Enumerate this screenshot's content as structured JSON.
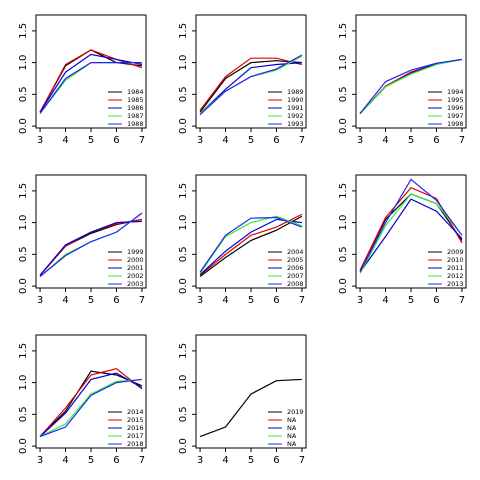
{
  "chart_data": [
    {
      "type": "line",
      "x": [
        3,
        4,
        5,
        6,
        7
      ],
      "xlim": [
        2.84,
        7.16
      ],
      "xticks": [
        3,
        4,
        5,
        6,
        7
      ],
      "ylim": [
        -0.03,
        1.75
      ],
      "yticks": [
        {
          "value": 0,
          "label": "0.0"
        },
        {
          "value": 0.5,
          "label": "0.5"
        },
        {
          "value": 1,
          "label": "1.0"
        },
        {
          "value": 1.5,
          "label": "1.5"
        }
      ],
      "series": [
        {
          "name": "1984",
          "color": "#000000",
          "values": [
            0.22,
            0.95,
            1.2,
            1.0,
            0.95
          ]
        },
        {
          "name": "1985",
          "color": "#e00000",
          "values": [
            0.22,
            0.97,
            1.2,
            1.05,
            0.92
          ]
        },
        {
          "name": "1986",
          "color": "#0000cd",
          "values": [
            0.22,
            0.85,
            1.13,
            1.05,
            0.97
          ]
        },
        {
          "name": "1987",
          "color": "#33ee33",
          "values": [
            0.2,
            0.72,
            1.0,
            1.0,
            1.0
          ]
        },
        {
          "name": "1988",
          "color": "#2222ff",
          "values": [
            0.2,
            0.75,
            1.0,
            1.0,
            1.0
          ]
        }
      ]
    },
    {
      "type": "line",
      "x": [
        3,
        4,
        5,
        6,
        7
      ],
      "xlim": [
        2.84,
        7.16
      ],
      "xticks": [
        3,
        4,
        5,
        6,
        7
      ],
      "ylim": [
        -0.03,
        1.75
      ],
      "yticks": [
        {
          "value": 0,
          "label": "0.0"
        },
        {
          "value": 0.5,
          "label": "0.5"
        },
        {
          "value": 1,
          "label": "1.0"
        },
        {
          "value": 1.5,
          "label": "1.5"
        }
      ],
      "series": [
        {
          "name": "1989",
          "color": "#000000",
          "values": [
            0.22,
            0.75,
            1.0,
            1.03,
            1.0
          ]
        },
        {
          "name": "1990",
          "color": "#e00000",
          "values": [
            0.25,
            0.78,
            1.07,
            1.07,
            0.97
          ]
        },
        {
          "name": "1991",
          "color": "#0000cd",
          "values": [
            0.2,
            0.58,
            0.92,
            0.97,
            1.0
          ]
        },
        {
          "name": "1992",
          "color": "#33ee33",
          "values": [
            0.2,
            0.55,
            0.78,
            0.88,
            1.1
          ]
        },
        {
          "name": "1993",
          "color": "#2222ff",
          "values": [
            0.18,
            0.55,
            0.78,
            0.9,
            1.12
          ]
        }
      ]
    },
    {
      "type": "line",
      "x": [
        3,
        4,
        5,
        6,
        7
      ],
      "xlim": [
        2.84,
        7.16
      ],
      "xticks": [
        3,
        4,
        5,
        6,
        7
      ],
      "ylim": [
        -0.03,
        1.75
      ],
      "yticks": [
        {
          "value": 0,
          "label": "0.0"
        },
        {
          "value": 0.5,
          "label": "0.5"
        },
        {
          "value": 1,
          "label": "1.0"
        },
        {
          "value": 1.5,
          "label": "1.5"
        }
      ],
      "series": [
        {
          "name": "1994",
          "color": "#000000",
          "values": [
            0.2,
            0.62,
            0.85,
            0.98,
            1.05
          ]
        },
        {
          "name": "1995",
          "color": "#e00000",
          "values": [
            0.2,
            0.63,
            0.85,
            0.98,
            1.05
          ]
        },
        {
          "name": "1996",
          "color": "#0000cd",
          "values": [
            0.2,
            0.62,
            0.83,
            0.98,
            1.05
          ]
        },
        {
          "name": "1997",
          "color": "#33ee33",
          "values": [
            0.2,
            0.62,
            0.82,
            0.97,
            1.05
          ]
        },
        {
          "name": "1998",
          "color": "#2222ff",
          "values": [
            0.2,
            0.7,
            0.88,
            0.99,
            1.05
          ]
        }
      ]
    },
    {
      "type": "line",
      "x": [
        3,
        4,
        5,
        6,
        7
      ],
      "xlim": [
        2.84,
        7.16
      ],
      "xticks": [
        3,
        4,
        5,
        6,
        7
      ],
      "ylim": [
        -0.03,
        1.75
      ],
      "yticks": [
        {
          "value": 0,
          "label": "0.0"
        },
        {
          "value": 0.5,
          "label": "0.5"
        },
        {
          "value": 1,
          "label": "1.0"
        },
        {
          "value": 1.5,
          "label": "1.5"
        }
      ],
      "series": [
        {
          "name": "1999",
          "color": "#000000",
          "values": [
            0.17,
            0.63,
            0.83,
            0.97,
            1.05
          ]
        },
        {
          "name": "2000",
          "color": "#e00000",
          "values": [
            0.17,
            0.63,
            0.85,
            0.98,
            1.05
          ]
        },
        {
          "name": "2001",
          "color": "#0000cd",
          "values": [
            0.17,
            0.65,
            0.85,
            1.0,
            1.02
          ]
        },
        {
          "name": "2002",
          "color": "#33ee33",
          "values": [
            0.15,
            0.5,
            0.7,
            0.85,
            1.15
          ]
        },
        {
          "name": "2003",
          "color": "#2222ff",
          "values": [
            0.15,
            0.48,
            0.7,
            0.85,
            1.15
          ]
        }
      ]
    },
    {
      "type": "line",
      "x": [
        3,
        4,
        5,
        6,
        7
      ],
      "xlim": [
        2.84,
        7.16
      ],
      "xticks": [
        3,
        4,
        5,
        6,
        7
      ],
      "ylim": [
        -0.03,
        1.75
      ],
      "yticks": [
        {
          "value": 0,
          "label": "0.0"
        },
        {
          "value": 0.5,
          "label": "0.5"
        },
        {
          "value": 1,
          "label": "1.0"
        },
        {
          "value": 1.5,
          "label": "1.5"
        }
      ],
      "series": [
        {
          "name": "2004",
          "color": "#000000",
          "values": [
            0.15,
            0.45,
            0.72,
            0.88,
            1.1
          ]
        },
        {
          "name": "2005",
          "color": "#e00000",
          "values": [
            0.17,
            0.5,
            0.8,
            0.93,
            1.13
          ]
        },
        {
          "name": "2006",
          "color": "#0000cd",
          "values": [
            0.18,
            0.55,
            0.85,
            1.05,
            1.0
          ]
        },
        {
          "name": "2007",
          "color": "#33ee33",
          "values": [
            0.2,
            0.78,
            1.0,
            1.1,
            0.95
          ]
        },
        {
          "name": "2008",
          "color": "#2222ff",
          "values": [
            0.22,
            0.8,
            1.07,
            1.08,
            0.93
          ]
        }
      ]
    },
    {
      "type": "line",
      "x": [
        3,
        4,
        5,
        6,
        7
      ],
      "xlim": [
        2.84,
        7.16
      ],
      "xticks": [
        3,
        4,
        5,
        6,
        7
      ],
      "ylim": [
        -0.03,
        1.75
      ],
      "yticks": [
        {
          "value": 0,
          "label": "0.0"
        },
        {
          "value": 0.5,
          "label": "0.5"
        },
        {
          "value": 1,
          "label": "1.0"
        },
        {
          "value": 1.5,
          "label": "1.5"
        }
      ],
      "series": [
        {
          "name": "2009",
          "color": "#000000",
          "values": [
            0.25,
            1.05,
            1.45,
            1.3,
            0.72
          ]
        },
        {
          "name": "2010",
          "color": "#e00000",
          "values": [
            0.25,
            1.08,
            1.55,
            1.38,
            0.68
          ]
        },
        {
          "name": "2011",
          "color": "#0000cd",
          "values": [
            0.22,
            0.78,
            1.37,
            1.18,
            0.75
          ]
        },
        {
          "name": "2012",
          "color": "#33ee33",
          "values": [
            0.2,
            0.95,
            1.45,
            1.3,
            0.8
          ]
        },
        {
          "name": "2013",
          "color": "#2222ff",
          "values": [
            0.22,
            1.0,
            1.68,
            1.35,
            0.8
          ]
        }
      ]
    },
    {
      "type": "line",
      "x": [
        3,
        4,
        5,
        6,
        7
      ],
      "xlim": [
        2.84,
        7.16
      ],
      "xticks": [
        3,
        4,
        5,
        6,
        7
      ],
      "ylim": [
        -0.03,
        1.75
      ],
      "yticks": [
        {
          "value": 0,
          "label": "0.0"
        },
        {
          "value": 0.5,
          "label": "0.5"
        },
        {
          "value": 1,
          "label": "1.0"
        },
        {
          "value": 1.5,
          "label": "1.5"
        }
      ],
      "series": [
        {
          "name": "2014",
          "color": "#000000",
          "values": [
            0.15,
            0.55,
            1.18,
            1.12,
            0.95
          ]
        },
        {
          "name": "2015",
          "color": "#e00000",
          "values": [
            0.15,
            0.6,
            1.12,
            1.22,
            0.9
          ]
        },
        {
          "name": "2016",
          "color": "#0000cd",
          "values": [
            0.15,
            0.52,
            1.05,
            1.15,
            0.92
          ]
        },
        {
          "name": "2017",
          "color": "#33ee33",
          "values": [
            0.15,
            0.35,
            0.82,
            1.02,
            1.05
          ]
        },
        {
          "name": "2018",
          "color": "#2222ff",
          "values": [
            0.15,
            0.3,
            0.8,
            1.0,
            1.05
          ]
        }
      ]
    },
    {
      "type": "line",
      "x": [
        3,
        4,
        5,
        6,
        7
      ],
      "xlim": [
        2.84,
        7.16
      ],
      "xticks": [
        3,
        4,
        5,
        6,
        7
      ],
      "ylim": [
        -0.03,
        1.75
      ],
      "yticks": [
        {
          "value": 0,
          "label": "0.0"
        },
        {
          "value": 0.5,
          "label": "0.5"
        },
        {
          "value": 1,
          "label": "1.0"
        },
        {
          "value": 1.5,
          "label": "1.5"
        }
      ],
      "series": [
        {
          "name": "2019",
          "color": "#000000",
          "values": [
            0.15,
            0.3,
            0.82,
            1.03,
            1.05
          ]
        },
        {
          "name": "NA",
          "color": "#e00000",
          "values": [
            null,
            null,
            null,
            null,
            null
          ]
        },
        {
          "name": "NA",
          "color": "#0000cd",
          "values": [
            null,
            null,
            null,
            null,
            null
          ]
        },
        {
          "name": "NA",
          "color": "#33ee33",
          "values": [
            null,
            null,
            null,
            null,
            null
          ]
        },
        {
          "name": "NA",
          "color": "#2222ff",
          "values": [
            null,
            null,
            null,
            null,
            null
          ]
        }
      ]
    }
  ]
}
